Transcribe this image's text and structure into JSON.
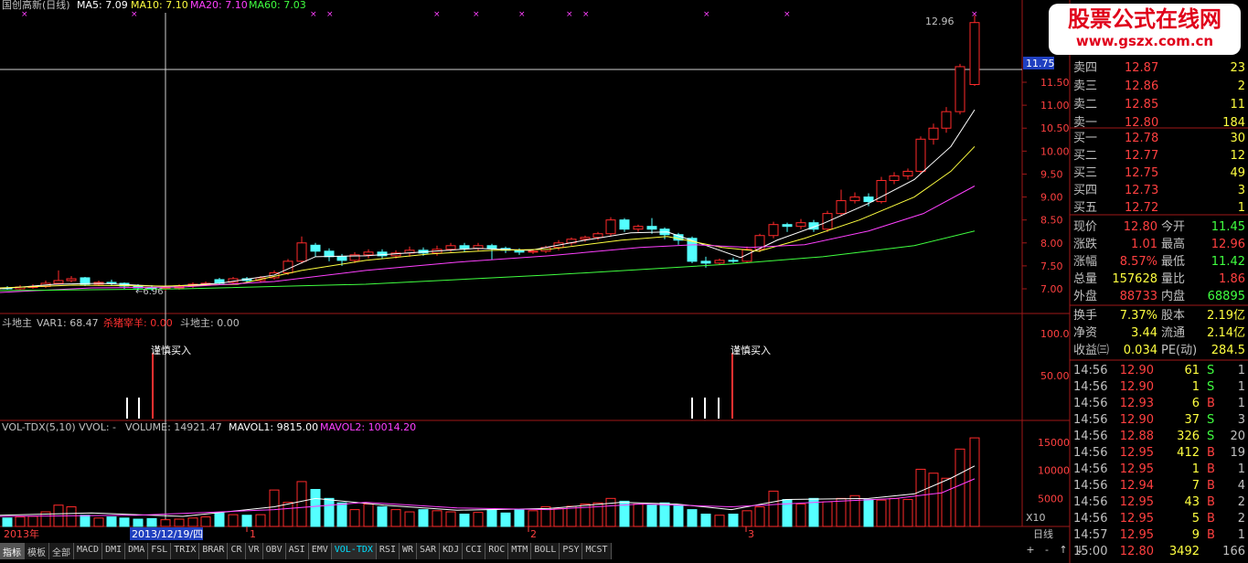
{
  "header": {
    "title": "国创高新(日线)",
    "ma5": "MA5: 7.09",
    "ma10": "MA10: 7.10",
    "ma20": "MA20: 7.10",
    "ma60": "MA60: 7.03"
  },
  "price_chart": {
    "price_labels": [
      "11.50",
      "11.00",
      "10.50",
      "10.00",
      "9.50",
      "9.00",
      "8.50",
      "8.00",
      "7.50",
      "7.00"
    ],
    "crosshair_price": "11.75",
    "high_label": "12.96",
    "low_label": "6.96",
    "colors": {
      "up": "#ff3030",
      "down": "#54ffff",
      "ma5": "#ffffff",
      "ma10": "#ffff40",
      "ma20": "#ff40ff",
      "ma60": "#40ff40"
    }
  },
  "indicator": {
    "title": "斗地主",
    "var1": "VAR1: 68.47",
    "sell_label": "杀猪宰羊: 0.00",
    "value": "斗地主: 0.00",
    "signal": "谨慎买入",
    "y_labels": [
      "100.0",
      "50.00"
    ]
  },
  "volume": {
    "title": "VOL-TDX(5,10) VVOL: -",
    "volume": "VOLUME: 14921.47",
    "mavol1": "MAVOL1: 9815.00",
    "mavol2": "MAVOL2: 10014.20",
    "y_labels": [
      "15000",
      "10000",
      "5000"
    ],
    "unit": "X10"
  },
  "date_axis": {
    "year": "2013年",
    "cursor_date": "2013/12/19/四",
    "m1": "1",
    "m2": "2",
    "m3": "3",
    "period": "日线"
  },
  "quote": {
    "asks": [
      {
        "label": "卖四",
        "price": "12.87",
        "vol": "23"
      },
      {
        "label": "卖三",
        "price": "12.86",
        "vol": "2"
      },
      {
        "label": "卖二",
        "price": "12.85",
        "vol": "11"
      },
      {
        "label": "卖一",
        "price": "12.80",
        "vol": "184"
      }
    ],
    "bids": [
      {
        "label": "买一",
        "price": "12.78",
        "vol": "30"
      },
      {
        "label": "买二",
        "price": "12.77",
        "vol": "12"
      },
      {
        "label": "买三",
        "price": "12.75",
        "vol": "49"
      },
      {
        "label": "买四",
        "price": "12.73",
        "vol": "3"
      },
      {
        "label": "买五",
        "price": "12.72",
        "vol": "1"
      }
    ],
    "stats": [
      {
        "l1": "现价",
        "v1": "12.80",
        "l2": "今开",
        "v2": "11.45",
        "c1": "#ff4040",
        "c2": "#40ff40"
      },
      {
        "l1": "涨跌",
        "v1": "1.01",
        "l2": "最高",
        "v2": "12.96",
        "c1": "#ff4040",
        "c2": "#ff4040"
      },
      {
        "l1": "涨幅",
        "v1": "8.57%",
        "l2": "最低",
        "v2": "11.42",
        "c1": "#ff4040",
        "c2": "#40ff40"
      },
      {
        "l1": "总量",
        "v1": "157628",
        "l2": "量比",
        "v2": "1.86",
        "c1": "#ffff40",
        "c2": "#ff4040"
      },
      {
        "l1": "外盘",
        "v1": "88733",
        "l2": "内盘",
        "v2": "68895",
        "c1": "#ff4040",
        "c2": "#40ff40"
      }
    ],
    "stats2": [
      {
        "l1": "换手",
        "v1": "7.37%",
        "l2": "股本",
        "v2": "2.19亿"
      },
      {
        "l1": "净资",
        "v1": "3.44",
        "l2": "流通",
        "v2": "2.14亿"
      },
      {
        "l1": "收益㈢",
        "v1": "0.034",
        "l2": "PE(动)",
        "v2": "284.5"
      }
    ],
    "ticks": [
      {
        "t": "14:56",
        "p": "12.90",
        "v": "61",
        "s": "S",
        "n": "1"
      },
      {
        "t": "14:56",
        "p": "12.90",
        "v": "1",
        "s": "S",
        "n": "1"
      },
      {
        "t": "14:56",
        "p": "12.93",
        "v": "6",
        "s": "B",
        "n": "1"
      },
      {
        "t": "14:56",
        "p": "12.90",
        "v": "37",
        "s": "S",
        "n": "3"
      },
      {
        "t": "14:56",
        "p": "12.88",
        "v": "326",
        "s": "S",
        "n": "20"
      },
      {
        "t": "14:56",
        "p": "12.95",
        "v": "412",
        "s": "B",
        "n": "19"
      },
      {
        "t": "14:56",
        "p": "12.95",
        "v": "1",
        "s": "B",
        "n": "1"
      },
      {
        "t": "14:56",
        "p": "12.94",
        "v": "7",
        "s": "B",
        "n": "4"
      },
      {
        "t": "14:56",
        "p": "12.95",
        "v": "43",
        "s": "B",
        "n": "2"
      },
      {
        "t": "14:56",
        "p": "12.95",
        "v": "5",
        "s": "B",
        "n": "2"
      },
      {
        "t": "14:57",
        "p": "12.95",
        "v": "9",
        "s": "B",
        "n": "1"
      },
      {
        "t": "15:00",
        "p": "12.80",
        "v": "3492",
        "s": "",
        "n": "166"
      }
    ]
  },
  "watermark": {
    "line1": "股票公式在线网",
    "line2": "www.gszx.com.cn"
  },
  "tabs": [
    "指标",
    "模板",
    "全部",
    "MACD",
    "DMI",
    "DMA",
    "FSL",
    "TRIX",
    "BRAR",
    "CR",
    "VR",
    "OBV",
    "ASI",
    "EMV",
    "VOL-TDX",
    "RSI",
    "WR",
    "SAR",
    "KDJ",
    "CCI",
    "ROC",
    "MTM",
    "BOLL",
    "PSY",
    "MCST"
  ],
  "active_tab": "VOL-TDX",
  "nav": [
    "+",
    "-",
    "↑",
    "↓"
  ]
}
